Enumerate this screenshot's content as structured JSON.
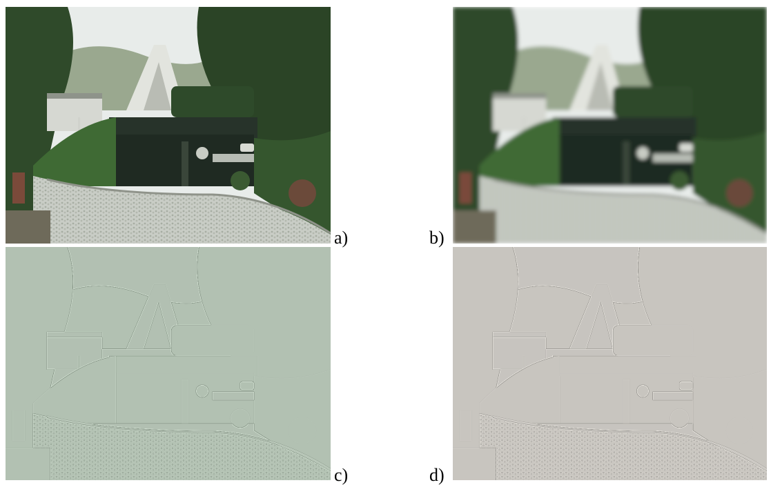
{
  "panels": [
    {
      "id": "a",
      "label": "a)",
      "kind": "original photograph",
      "dominant_color": "#4a6a3a"
    },
    {
      "id": "b",
      "label": "b)",
      "kind": "blurred (low-pass) photograph",
      "dominant_color": "#5a7a4a"
    },
    {
      "id": "c",
      "label": "c)",
      "kind": "high-pass detail image",
      "dominant_color": "#7d9478"
    },
    {
      "id": "d",
      "label": "d)",
      "kind": "high-pass detail image",
      "dominant_color": "#958f86"
    }
  ]
}
